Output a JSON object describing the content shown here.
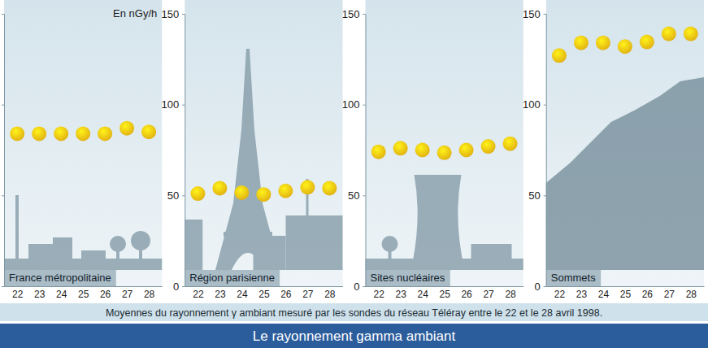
{
  "title": "Le rayonnement gamma ambiant",
  "caption": "Moyennes du rayonnement γ ambiant mesuré par les sondes du réseau Téléray entre le 22 et le 28 avril 1998.",
  "chart_data": [
    {
      "type": "dot",
      "title": "France métropolitaine",
      "ylabel": "En nGy/h",
      "categories": [
        "22",
        "23",
        "24",
        "25",
        "26",
        "27",
        "28"
      ],
      "values": [
        84,
        84,
        84,
        84,
        84,
        87,
        85
      ],
      "color": "#f7c414",
      "marker": "circle",
      "ylim": [
        0,
        150
      ],
      "yticks": [
        0,
        50,
        100,
        150
      ],
      "tick_labels": "x"
    },
    {
      "type": "dot",
      "title": "Région parisienne",
      "categories": [
        "22",
        "23",
        "24",
        "25",
        "26",
        "27",
        "28"
      ],
      "values": [
        51,
        54,
        51.5,
        50.5,
        52.5,
        54.5,
        54
      ],
      "color": "#f7c414",
      "marker": "circle",
      "ylim": [
        0,
        150
      ],
      "yticks": [
        0,
        50,
        100,
        150
      ]
    },
    {
      "type": "dot",
      "title": "Sites nucléaires",
      "categories": [
        "22",
        "23",
        "24",
        "25",
        "26",
        "27",
        "28"
      ],
      "values": [
        74,
        76,
        75,
        73.5,
        75,
        77,
        78.5
      ],
      "color": "#f7c414",
      "marker": "circle",
      "ylim": [
        0,
        150
      ],
      "yticks": [
        0,
        50,
        100,
        150
      ]
    },
    {
      "type": "dot",
      "title": "Sommets",
      "categories": [
        "22",
        "23",
        "24",
        "25",
        "26",
        "27",
        "28"
      ],
      "values": [
        127,
        134,
        134,
        132,
        134.5,
        139,
        139
      ],
      "color": "#f7c414",
      "marker": "circle",
      "ylim": [
        0,
        150
      ],
      "yticks": [
        0,
        50,
        100,
        150
      ]
    }
  ]
}
